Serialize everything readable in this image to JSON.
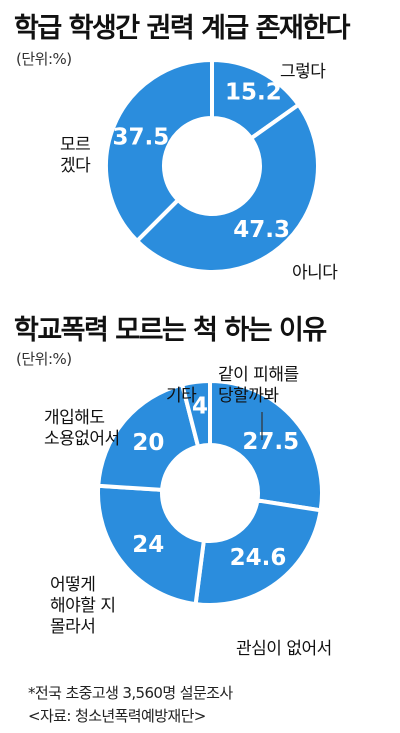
{
  "chart_data": [
    {
      "type": "pie",
      "title": "학급 학생간 권력 계급 존재한다",
      "unit": "(단위:%)",
      "categories": [
        "그렇다",
        "아니다",
        "모르겠다"
      ],
      "values": [
        15.2,
        47.3,
        37.5
      ],
      "value_labels": [
        "15.2",
        "47.3",
        "37.5"
      ],
      "category_labels": [
        [
          "그렇다"
        ],
        [
          "아니다"
        ],
        [
          "모르",
          "겠다"
        ]
      ],
      "color": "#2b8ddd"
    },
    {
      "type": "pie",
      "title": "학교폭력 모르는 척 하는 이유",
      "unit": "(단위:%)",
      "categories": [
        "같이 피해를 당할까봐",
        "관심이 없어서",
        "어떻게 해야할 지 몰라서",
        "개입해도 소용없어서",
        "기타"
      ],
      "values": [
        27.5,
        24.6,
        24,
        20,
        4
      ],
      "value_labels": [
        "27.5",
        "24.6",
        "24",
        "20",
        "4"
      ],
      "category_labels": [
        [
          "같이 피해를",
          "당할까봐"
        ],
        [
          "관심이 없어서"
        ],
        [
          "어떻게",
          "해야할 지",
          "몰라서"
        ],
        [
          "개입해도",
          "소용없어서"
        ],
        [
          "기타"
        ]
      ],
      "color": "#2b8ddd"
    }
  ],
  "footer": {
    "note": "*전국 초중고생 3,560명 설문조사",
    "source": "<자료: 청소년폭력예방재단>"
  }
}
